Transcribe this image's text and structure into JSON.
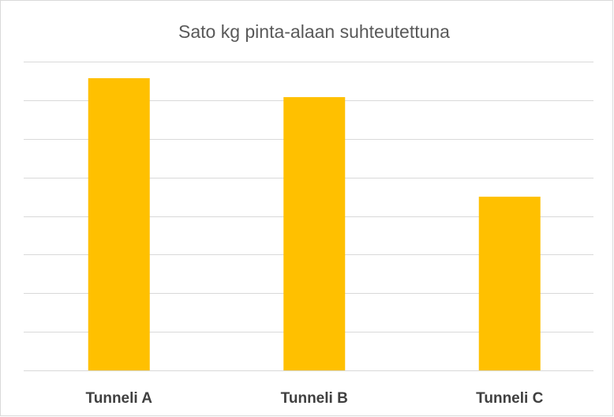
{
  "chart_data": {
    "type": "bar",
    "title": "Sato kg pinta-alaan suhteutettuna",
    "categories": [
      "Tunneli A",
      "Tunneli B",
      "Tunneli C"
    ],
    "values": [
      7.57,
      7.08,
      4.5
    ],
    "color": "#ffc000",
    "ylim": [
      0,
      8
    ],
    "yticks": [
      0,
      1,
      2,
      3,
      4,
      5,
      6,
      7,
      8
    ],
    "grid": true
  }
}
